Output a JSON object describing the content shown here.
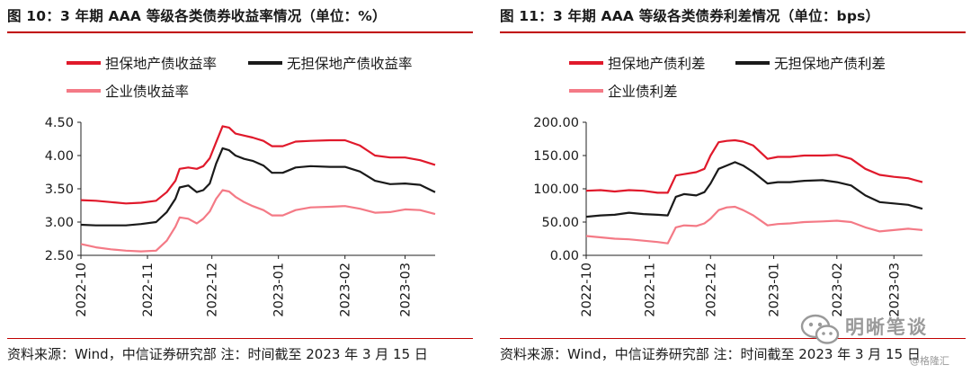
{
  "left": {
    "title": "图 10：3 年期 AAA 等级各类债券收益率情况（单位：%）",
    "source": "资料来源：Wind，中信证券研究部  注：时间截至 2023 年 3 月 15 日"
  },
  "right": {
    "title": "图 11：3 年期 AAA 等级各类债券利差情况（单位：bps）",
    "source": "资料来源：Wind，中信证券研究部  注：时间截至 2023 年 3 月 15 日"
  },
  "watermark": {
    "name": "明晰笔谈",
    "sub": "@格隆汇"
  },
  "colors": {
    "urban_investment": "#e0192b",
    "non_urban": "#1a1a1a",
    "corporate": "#f47a86",
    "rule": "#c00000"
  },
  "chart_data": [
    {
      "type": "line",
      "title": "图 10：3 年期 AAA 等级各类债券收益率情况（单位：%）",
      "ylim": [
        2.5,
        4.5
      ],
      "yticks": [
        "2.50",
        "3.00",
        "3.50",
        "4.00",
        "4.50"
      ],
      "xlim": [
        "2022-10-01",
        "2023-03-15"
      ],
      "xticks": [
        "2022-10",
        "2022-11",
        "2022-12",
        "2023-01",
        "2023-02",
        "2023-03"
      ],
      "legend": [
        "担保地产债收益率",
        "无担保地产债收益率",
        "企业债收益率"
      ],
      "series": [
        {
          "name": "担保地产债收益率",
          "color": "#e0192b",
          "points": [
            [
              "2022-10-01",
              3.33
            ],
            [
              "2022-10-08",
              3.32
            ],
            [
              "2022-10-15",
              3.3
            ],
            [
              "2022-10-22",
              3.28
            ],
            [
              "2022-10-29",
              3.29
            ],
            [
              "2022-11-05",
              3.32
            ],
            [
              "2022-11-10",
              3.45
            ],
            [
              "2022-11-14",
              3.62
            ],
            [
              "2022-11-16",
              3.8
            ],
            [
              "2022-11-20",
              3.82
            ],
            [
              "2022-11-24",
              3.8
            ],
            [
              "2022-11-27",
              3.84
            ],
            [
              "2022-11-30",
              3.96
            ],
            [
              "2022-12-03",
              4.2
            ],
            [
              "2022-12-06",
              4.44
            ],
            [
              "2022-12-09",
              4.42
            ],
            [
              "2022-12-12",
              4.33
            ],
            [
              "2022-12-16",
              4.3
            ],
            [
              "2022-12-20",
              4.27
            ],
            [
              "2022-12-25",
              4.22
            ],
            [
              "2022-12-29",
              4.14
            ],
            [
              "2023-01-03",
              4.14
            ],
            [
              "2023-01-09",
              4.21
            ],
            [
              "2023-01-16",
              4.22
            ],
            [
              "2023-01-25",
              4.23
            ],
            [
              "2023-02-01",
              4.23
            ],
            [
              "2023-02-08",
              4.15
            ],
            [
              "2023-02-15",
              4.0
            ],
            [
              "2023-02-22",
              3.97
            ],
            [
              "2023-03-01",
              3.97
            ],
            [
              "2023-03-08",
              3.93
            ],
            [
              "2023-03-15",
              3.86
            ]
          ]
        },
        {
          "name": "无担保地产债收益率",
          "color": "#1a1a1a",
          "points": [
            [
              "2022-10-01",
              2.96
            ],
            [
              "2022-10-08",
              2.95
            ],
            [
              "2022-10-15",
              2.95
            ],
            [
              "2022-10-22",
              2.95
            ],
            [
              "2022-10-29",
              2.97
            ],
            [
              "2022-11-05",
              3.0
            ],
            [
              "2022-11-10",
              3.15
            ],
            [
              "2022-11-14",
              3.35
            ],
            [
              "2022-11-16",
              3.52
            ],
            [
              "2022-11-20",
              3.55
            ],
            [
              "2022-11-24",
              3.45
            ],
            [
              "2022-11-27",
              3.48
            ],
            [
              "2022-11-30",
              3.58
            ],
            [
              "2022-12-03",
              3.88
            ],
            [
              "2022-12-06",
              4.11
            ],
            [
              "2022-12-09",
              4.08
            ],
            [
              "2022-12-12",
              4.0
            ],
            [
              "2022-12-16",
              3.95
            ],
            [
              "2022-12-20",
              3.92
            ],
            [
              "2022-12-25",
              3.85
            ],
            [
              "2022-12-29",
              3.74
            ],
            [
              "2023-01-03",
              3.74
            ],
            [
              "2023-01-09",
              3.82
            ],
            [
              "2023-01-16",
              3.84
            ],
            [
              "2023-01-25",
              3.83
            ],
            [
              "2023-02-01",
              3.83
            ],
            [
              "2023-02-08",
              3.76
            ],
            [
              "2023-02-15",
              3.62
            ],
            [
              "2023-02-22",
              3.57
            ],
            [
              "2023-03-01",
              3.58
            ],
            [
              "2023-03-08",
              3.56
            ],
            [
              "2023-03-15",
              3.45
            ]
          ]
        },
        {
          "name": "企业债收益率",
          "color": "#f47a86",
          "points": [
            [
              "2022-10-01",
              2.67
            ],
            [
              "2022-10-08",
              2.62
            ],
            [
              "2022-10-15",
              2.59
            ],
            [
              "2022-10-22",
              2.57
            ],
            [
              "2022-10-29",
              2.56
            ],
            [
              "2022-11-05",
              2.57
            ],
            [
              "2022-11-10",
              2.72
            ],
            [
              "2022-11-14",
              2.93
            ],
            [
              "2022-11-16",
              3.07
            ],
            [
              "2022-11-20",
              3.05
            ],
            [
              "2022-11-24",
              2.98
            ],
            [
              "2022-11-27",
              3.05
            ],
            [
              "2022-11-30",
              3.16
            ],
            [
              "2022-12-03",
              3.35
            ],
            [
              "2022-12-06",
              3.48
            ],
            [
              "2022-12-09",
              3.46
            ],
            [
              "2022-12-12",
              3.38
            ],
            [
              "2022-12-16",
              3.3
            ],
            [
              "2022-12-20",
              3.24
            ],
            [
              "2022-12-25",
              3.18
            ],
            [
              "2022-12-29",
              3.1
            ],
            [
              "2023-01-03",
              3.1
            ],
            [
              "2023-01-09",
              3.18
            ],
            [
              "2023-01-16",
              3.22
            ],
            [
              "2023-01-25",
              3.23
            ],
            [
              "2023-02-01",
              3.24
            ],
            [
              "2023-02-08",
              3.2
            ],
            [
              "2023-02-15",
              3.14
            ],
            [
              "2023-02-22",
              3.15
            ],
            [
              "2023-03-01",
              3.19
            ],
            [
              "2023-03-08",
              3.18
            ],
            [
              "2023-03-15",
              3.12
            ]
          ]
        }
      ]
    },
    {
      "type": "line",
      "title": "图 11：3 年期 AAA 等级各类债券利差情况（单位：bps）",
      "ylim": [
        0,
        200
      ],
      "yticks": [
        "0.00",
        "50.00",
        "100.00",
        "150.00",
        "200.00"
      ],
      "xlim": [
        "2022-10-01",
        "2023-03-15"
      ],
      "xticks": [
        "2022-10",
        "2022-11",
        "2022-12",
        "2023-01",
        "2023-02",
        "2023-03"
      ],
      "legend": [
        "担保地产债利差",
        "无担保地产债利差",
        "企业债利差"
      ],
      "series": [
        {
          "name": "担保地产债利差",
          "color": "#e0192b",
          "points": [
            [
              "2022-10-01",
              97
            ],
            [
              "2022-10-08",
              98
            ],
            [
              "2022-10-15",
              96
            ],
            [
              "2022-10-22",
              98
            ],
            [
              "2022-10-29",
              97
            ],
            [
              "2022-11-05",
              94
            ],
            [
              "2022-11-10",
              94
            ],
            [
              "2022-11-14",
              120
            ],
            [
              "2022-11-18",
              122
            ],
            [
              "2022-11-24",
              125
            ],
            [
              "2022-11-28",
              130
            ],
            [
              "2022-12-01",
              150
            ],
            [
              "2022-12-05",
              170
            ],
            [
              "2022-12-09",
              172
            ],
            [
              "2022-12-13",
              173
            ],
            [
              "2022-12-17",
              171
            ],
            [
              "2022-12-22",
              165
            ],
            [
              "2022-12-29",
              145
            ],
            [
              "2023-01-03",
              148
            ],
            [
              "2023-01-09",
              148
            ],
            [
              "2023-01-16",
              150
            ],
            [
              "2023-01-25",
              150
            ],
            [
              "2023-02-01",
              151
            ],
            [
              "2023-02-08",
              145
            ],
            [
              "2023-02-15",
              130
            ],
            [
              "2023-02-22",
              121
            ],
            [
              "2023-03-01",
              118
            ],
            [
              "2023-03-08",
              116
            ],
            [
              "2023-03-15",
              110
            ]
          ]
        },
        {
          "name": "无担保地产债利差",
          "color": "#1a1a1a",
          "points": [
            [
              "2022-10-01",
              58
            ],
            [
              "2022-10-08",
              60
            ],
            [
              "2022-10-15",
              61
            ],
            [
              "2022-10-22",
              64
            ],
            [
              "2022-10-29",
              62
            ],
            [
              "2022-11-05",
              61
            ],
            [
              "2022-11-10",
              60
            ],
            [
              "2022-11-14",
              88
            ],
            [
              "2022-11-18",
              92
            ],
            [
              "2022-11-24",
              90
            ],
            [
              "2022-11-28",
              95
            ],
            [
              "2022-12-01",
              108
            ],
            [
              "2022-12-05",
              130
            ],
            [
              "2022-12-09",
              135
            ],
            [
              "2022-12-13",
              140
            ],
            [
              "2022-12-17",
              135
            ],
            [
              "2022-12-22",
              125
            ],
            [
              "2022-12-29",
              108
            ],
            [
              "2023-01-03",
              110
            ],
            [
              "2023-01-09",
              110
            ],
            [
              "2023-01-16",
              112
            ],
            [
              "2023-01-25",
              113
            ],
            [
              "2023-02-01",
              110
            ],
            [
              "2023-02-08",
              105
            ],
            [
              "2023-02-15",
              90
            ],
            [
              "2023-02-22",
              80
            ],
            [
              "2023-03-01",
              78
            ],
            [
              "2023-03-08",
              76
            ],
            [
              "2023-03-15",
              70
            ]
          ]
        },
        {
          "name": "企业债利差",
          "color": "#f47a86",
          "points": [
            [
              "2022-10-01",
              29
            ],
            [
              "2022-10-08",
              27
            ],
            [
              "2022-10-15",
              25
            ],
            [
              "2022-10-22",
              24
            ],
            [
              "2022-10-29",
              22
            ],
            [
              "2022-11-05",
              20
            ],
            [
              "2022-11-10",
              18
            ],
            [
              "2022-11-14",
              42
            ],
            [
              "2022-11-18",
              45
            ],
            [
              "2022-11-24",
              44
            ],
            [
              "2022-11-28",
              48
            ],
            [
              "2022-12-01",
              55
            ],
            [
              "2022-12-05",
              68
            ],
            [
              "2022-12-09",
              72
            ],
            [
              "2022-12-13",
              73
            ],
            [
              "2022-12-17",
              68
            ],
            [
              "2022-12-22",
              60
            ],
            [
              "2022-12-29",
              45
            ],
            [
              "2023-01-03",
              47
            ],
            [
              "2023-01-09",
              48
            ],
            [
              "2023-01-16",
              50
            ],
            [
              "2023-01-25",
              51
            ],
            [
              "2023-02-01",
              52
            ],
            [
              "2023-02-08",
              50
            ],
            [
              "2023-02-15",
              42
            ],
            [
              "2023-02-22",
              36
            ],
            [
              "2023-03-01",
              38
            ],
            [
              "2023-03-08",
              40
            ],
            [
              "2023-03-15",
              38
            ]
          ]
        }
      ]
    }
  ]
}
